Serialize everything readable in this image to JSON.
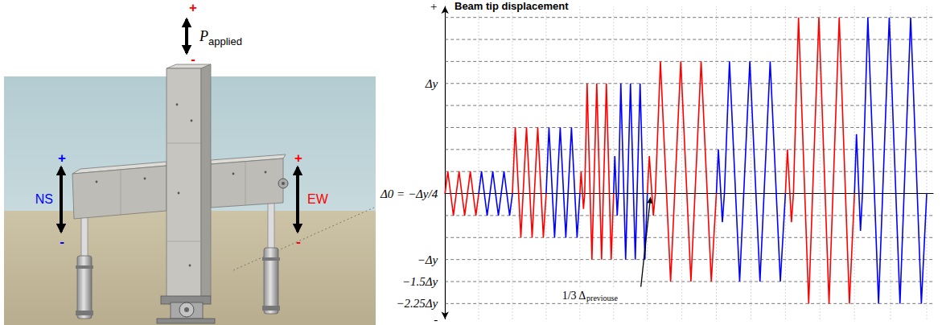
{
  "diagram": {
    "load": {
      "symbol": "P",
      "subscript": "applied",
      "plus": "+",
      "minus": "-",
      "color": "#ff0000"
    },
    "ns": {
      "label": "NS",
      "plus": "+",
      "minus": "-",
      "color": "#0000ff"
    },
    "ew": {
      "label": "EW",
      "plus": "+",
      "minus": "-",
      "color": "#ff0000"
    }
  },
  "chart_data": {
    "type": "line",
    "title": "Beam tip displacement",
    "xlim": [
      0,
      152
    ],
    "xticks": [
      10.5,
      21,
      31.5,
      42,
      52.5,
      63,
      73.75,
      84.5,
      95.25,
      106,
      116.75,
      127.5,
      138.75,
      150
    ],
    "ylim": [
      -5.7,
      8.5
    ],
    "yticks": [
      {
        "value": -5.7,
        "label": "-"
      },
      {
        "value": -5,
        "label": "−2.25Δy"
      },
      {
        "value": -4,
        "label": "−1.5Δy"
      },
      {
        "value": -3,
        "label": "−Δy"
      },
      {
        "value": 0,
        "label": "Δ0 = −Δy/4"
      },
      {
        "value": 5,
        "label": "Δy"
      },
      {
        "value": 8.5,
        "label": "+"
      }
    ],
    "gridlines_y": [
      -5,
      -4,
      -3,
      -2,
      -1,
      1,
      2,
      3,
      4,
      5,
      6,
      7,
      8
    ],
    "grid": true,
    "tick_labels": "y",
    "annotations": [
      {
        "text": "1/3 Δ",
        "subscript": "previouse",
        "x": 64,
        "y": 0
      }
    ],
    "series": [
      {
        "color": "#ff0000",
        "x": [
          0,
          0.875,
          2.625,
          4.375,
          6.125,
          7.875,
          9.625,
          10.5
        ],
        "values": [
          0,
          1,
          -1,
          1,
          -1,
          1,
          -1,
          0
        ]
      },
      {
        "color": "#0000ff",
        "x": [
          10.5,
          11.375,
          13.125,
          14.875,
          16.625,
          18.375,
          20.125,
          21
        ],
        "values": [
          0,
          1,
          -1,
          1,
          -1,
          1,
          -1,
          0
        ]
      },
      {
        "color": "#ff0000",
        "x": [
          21,
          21.875,
          23.625,
          25.375,
          27.125,
          28.875,
          30.625,
          31.5
        ],
        "values": [
          0,
          3,
          -2,
          3,
          -2,
          3,
          -2,
          0
        ]
      },
      {
        "color": "#0000ff",
        "x": [
          31.5,
          32.375,
          34.125,
          35.875,
          37.625,
          39.375,
          41.125,
          42
        ],
        "values": [
          0,
          3,
          -2,
          3,
          -2,
          3,
          -2,
          0
        ]
      },
      {
        "color": "#ff0000",
        "x": [
          42,
          42.375,
          43.125,
          43.5,
          44.25,
          45.75,
          47.25,
          48.75,
          50.25,
          51.75,
          52.5
        ],
        "values": [
          0,
          1,
          -0.7,
          0,
          5,
          -3,
          5,
          -3,
          5,
          -3,
          0
        ]
      },
      {
        "color": "#0000ff",
        "x": [
          52.5,
          52.875,
          53.625,
          54,
          54.75,
          56.25,
          57.75,
          59.25,
          60.75,
          62.25,
          63
        ],
        "values": [
          0,
          1.7,
          -1,
          0,
          5,
          -3,
          5,
          -3,
          5,
          -3,
          0
        ]
      },
      {
        "color": "#ff0000",
        "x": [
          63,
          63.625,
          64.875,
          65.5,
          67.08,
          70.25,
          73.42,
          76.58,
          79.75,
          82.92,
          84.5
        ],
        "values": [
          0,
          1.7,
          -1,
          0,
          6,
          -4,
          6,
          -4,
          6,
          -4,
          0
        ]
      },
      {
        "color": "#0000ff",
        "x": [
          84.5,
          85.125,
          86.375,
          87,
          88.58,
          91.75,
          94.92,
          98.08,
          101.25,
          104.42,
          106
        ],
        "values": [
          0,
          2,
          -1.3,
          0,
          6,
          -4,
          6,
          -4,
          6,
          -4,
          0
        ]
      },
      {
        "color": "#ff0000",
        "x": [
          106,
          106.625,
          107.875,
          108.5,
          110.08,
          113.25,
          116.42,
          119.58,
          122.75,
          125.92,
          127.5
        ],
        "values": [
          0,
          2,
          -1.3,
          0,
          8,
          -5,
          8,
          -5,
          8,
          -5,
          0
        ]
      },
      {
        "color": "#0000ff",
        "x": [
          127.5,
          128.125,
          129.375,
          130,
          131.67,
          135,
          138.33,
          141.67,
          145,
          148.33,
          150
        ],
        "values": [
          0,
          2.7,
          -1.7,
          0,
          8,
          -5,
          8,
          -5,
          8,
          -5,
          0
        ]
      }
    ]
  }
}
